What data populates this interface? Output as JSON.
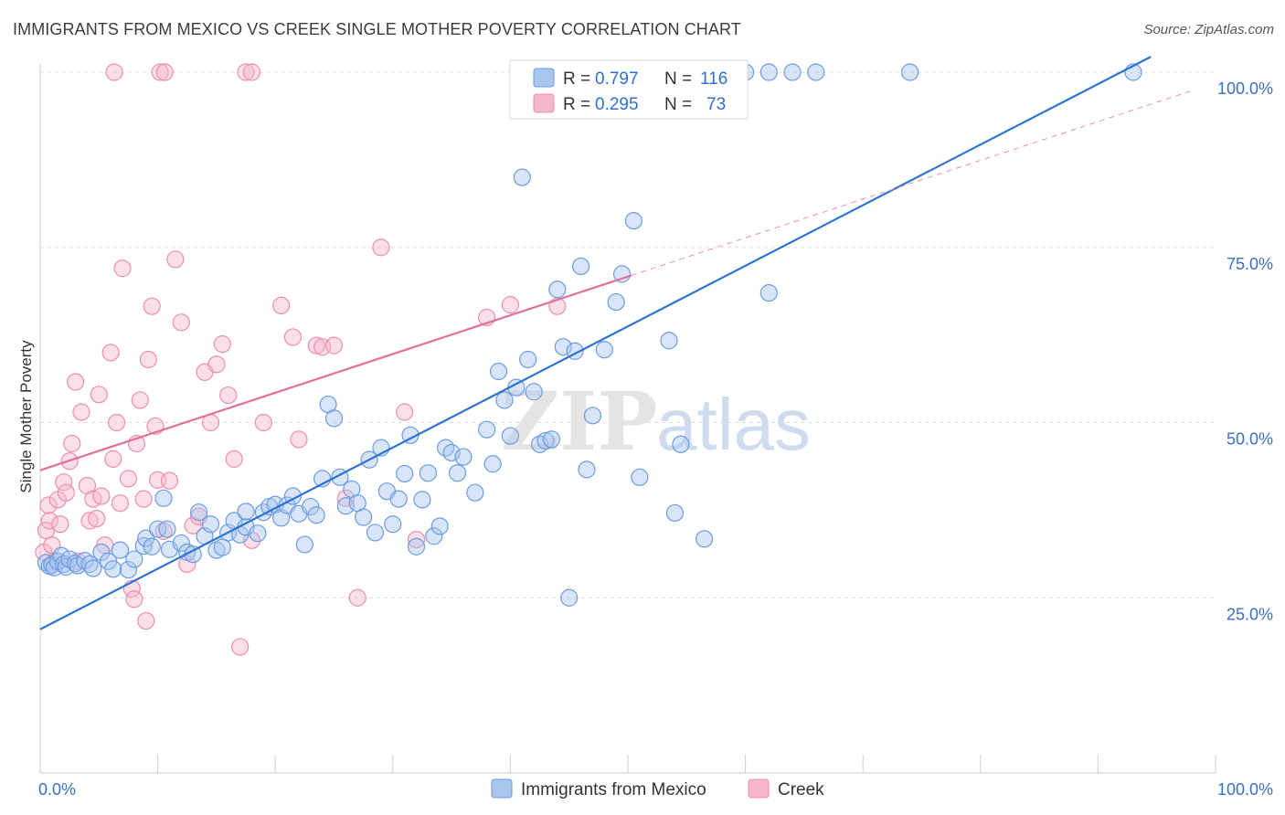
{
  "header": {
    "title": "IMMIGRANTS FROM MEXICO VS CREEK SINGLE MOTHER POVERTY CORRELATION CHART",
    "source": "Source: ZipAtlas.com"
  },
  "watermark": {
    "zip": "ZIP",
    "atlas": "atlas"
  },
  "colors": {
    "blue_fill": "#a9c6ef",
    "blue_stroke": "#6b9be0",
    "blue_line": "#2f74d0",
    "pink_fill": "#f5b8cb",
    "pink_stroke": "#ec8eab",
    "pink_line": "#e0709a",
    "grid": "#dcdcdc",
    "axis_label": "#3a6fc4"
  },
  "chart_data": {
    "type": "scatter",
    "xlabel": "",
    "ylabel": "Single Mother Poverty",
    "xlim": [
      0,
      100
    ],
    "ylim": [
      0,
      100
    ],
    "x_tick_labels": [
      "0.0%",
      "100.0%"
    ],
    "y_tick_labels": [
      "25.0%",
      "50.0%",
      "75.0%",
      "100.0%"
    ],
    "y_ticks": [
      25,
      50,
      75,
      100
    ],
    "grid": true,
    "legend_top": [
      {
        "r_label": "R = ",
        "r_value": "0.797",
        "n_label": "N = ",
        "n_value": "116"
      },
      {
        "r_label": "R = ",
        "r_value": "0.295",
        "n_label": "N = ",
        "n_value": "73"
      }
    ],
    "series": [
      {
        "name": "Immigrants from Mexico",
        "color": "#a9c6ef",
        "trend": {
          "x": [
            0,
            94.5
          ],
          "y": [
            20.5,
            102.2
          ]
        },
        "points": [
          [
            0.5,
            30
          ],
          [
            0.8,
            29.5
          ],
          [
            1,
            29.7
          ],
          [
            1.2,
            29.3
          ],
          [
            1.5,
            30.2
          ],
          [
            1.8,
            31
          ],
          [
            2,
            29.8
          ],
          [
            2.2,
            29.4
          ],
          [
            2.5,
            30.5
          ],
          [
            3,
            29.9
          ],
          [
            3.2,
            29.6
          ],
          [
            3.8,
            30.3
          ],
          [
            4.2,
            29.8
          ],
          [
            4.5,
            29.2
          ],
          [
            5.2,
            31.5
          ],
          [
            5.8,
            30.2
          ],
          [
            6.2,
            29.1
          ],
          [
            6.8,
            31.8
          ],
          [
            7.5,
            29
          ],
          [
            8,
            30.5
          ],
          [
            8.8,
            32.4
          ],
          [
            9,
            33.5
          ],
          [
            9.5,
            32.3
          ],
          [
            10,
            34.8
          ],
          [
            10.5,
            39.2
          ],
          [
            10.8,
            34.8
          ],
          [
            11,
            31.9
          ],
          [
            12,
            32.8
          ],
          [
            12.5,
            31.5
          ],
          [
            13,
            31.2
          ],
          [
            13.5,
            37.2
          ],
          [
            14,
            33.8
          ],
          [
            14.5,
            35.5
          ],
          [
            15,
            31.8
          ],
          [
            15.5,
            32.2
          ],
          [
            16,
            34.3
          ],
          [
            16.5,
            36
          ],
          [
            17,
            34
          ],
          [
            17.5,
            35.1
          ],
          [
            17.5,
            37.3
          ],
          [
            18.5,
            34.2
          ],
          [
            19,
            37.2
          ],
          [
            19.5,
            38
          ],
          [
            20,
            38.3
          ],
          [
            20.5,
            36.4
          ],
          [
            21,
            38.2
          ],
          [
            21.5,
            39.5
          ],
          [
            22,
            37
          ],
          [
            22.5,
            32.6
          ],
          [
            23,
            38
          ],
          [
            23.5,
            36.8
          ],
          [
            24,
            42
          ],
          [
            24.5,
            52.6
          ],
          [
            25,
            50.6
          ],
          [
            25.5,
            42.2
          ],
          [
            26,
            38.1
          ],
          [
            26.5,
            40.5
          ],
          [
            27,
            38.5
          ],
          [
            27.5,
            36.5
          ],
          [
            28,
            44.7
          ],
          [
            28.5,
            34.3
          ],
          [
            29,
            46.4
          ],
          [
            29.5,
            40.2
          ],
          [
            30,
            35.5
          ],
          [
            30.5,
            39.1
          ],
          [
            31,
            42.7
          ],
          [
            31.5,
            48.2
          ],
          [
            32,
            32.3
          ],
          [
            32.5,
            39
          ],
          [
            33,
            42.8
          ],
          [
            33.5,
            33.8
          ],
          [
            34,
            35.2
          ],
          [
            34.5,
            46.4
          ],
          [
            35,
            45.7
          ],
          [
            35.5,
            42.8
          ],
          [
            36,
            45.1
          ],
          [
            37,
            40
          ],
          [
            38,
            49
          ],
          [
            38.5,
            44.1
          ],
          [
            39,
            57.3
          ],
          [
            39.5,
            53.2
          ],
          [
            40,
            48.1
          ],
          [
            40.5,
            55
          ],
          [
            41,
            85
          ],
          [
            41.5,
            59
          ],
          [
            42,
            54.4
          ],
          [
            42.5,
            46.9
          ],
          [
            43,
            47.4
          ],
          [
            43.5,
            47.6
          ],
          [
            44,
            69
          ],
          [
            44.5,
            60.8
          ],
          [
            45,
            25
          ],
          [
            45.5,
            60.2
          ],
          [
            46,
            72.3
          ],
          [
            46.5,
            43.3
          ],
          [
            47,
            51
          ],
          [
            48,
            60.4
          ],
          [
            49,
            67.2
          ],
          [
            49.5,
            71.2
          ],
          [
            50.5,
            78.8
          ],
          [
            51,
            42.2
          ],
          [
            53.5,
            61.7
          ],
          [
            54,
            37.1
          ],
          [
            54.5,
            46.9
          ],
          [
            56.5,
            33.4
          ],
          [
            62,
            68.5
          ],
          [
            54,
            100
          ],
          [
            55,
            100
          ],
          [
            60,
            100
          ],
          [
            62,
            100
          ],
          [
            64,
            100
          ],
          [
            66,
            100
          ],
          [
            74,
            100
          ],
          [
            93,
            100
          ]
        ]
      },
      {
        "name": "Creek",
        "color": "#f5b8cb",
        "trend": {
          "x": [
            0,
            50.3
          ],
          "y": [
            43.2,
            71.0
          ]
        },
        "points": [
          [
            0.3,
            31.5
          ],
          [
            0.5,
            34.6
          ],
          [
            0.7,
            38.2
          ],
          [
            0.8,
            36
          ],
          [
            1,
            32.5
          ],
          [
            1.2,
            30.1
          ],
          [
            1.5,
            39
          ],
          [
            1.7,
            35.5
          ],
          [
            2,
            41.5
          ],
          [
            2.2,
            40
          ],
          [
            2.5,
            44.5
          ],
          [
            2.7,
            47
          ],
          [
            3,
            55.8
          ],
          [
            3.2,
            30.2
          ],
          [
            3.5,
            51.5
          ],
          [
            4,
            41
          ],
          [
            4.2,
            36
          ],
          [
            4.5,
            39.1
          ],
          [
            4.8,
            36.3
          ],
          [
            5,
            54
          ],
          [
            5.2,
            39.5
          ],
          [
            5.5,
            32.5
          ],
          [
            6,
            60
          ],
          [
            6.2,
            44.8
          ],
          [
            6.5,
            50
          ],
          [
            6.8,
            38.5
          ],
          [
            7,
            72
          ],
          [
            7.5,
            42
          ],
          [
            7.8,
            26.3
          ],
          [
            8,
            24.8
          ],
          [
            8.2,
            47
          ],
          [
            8.5,
            53.2
          ],
          [
            8.8,
            39.1
          ],
          [
            9,
            21.7
          ],
          [
            9.2,
            59
          ],
          [
            9.5,
            66.6
          ],
          [
            9.8,
            49.5
          ],
          [
            10,
            41.8
          ],
          [
            10.5,
            34.5
          ],
          [
            11,
            41.7
          ],
          [
            11.5,
            73.3
          ],
          [
            12,
            64.3
          ],
          [
            12.5,
            29.8
          ],
          [
            13,
            35.3
          ],
          [
            13.5,
            36.6
          ],
          [
            14,
            57.2
          ],
          [
            14.5,
            50
          ],
          [
            15,
            58.3
          ],
          [
            15.5,
            61.2
          ],
          [
            16,
            53.9
          ],
          [
            16.5,
            44.8
          ],
          [
            17,
            18
          ],
          [
            18,
            33.2
          ],
          [
            19,
            50
          ],
          [
            20.5,
            66.7
          ],
          [
            21.5,
            62.2
          ],
          [
            22,
            47.6
          ],
          [
            23.5,
            61
          ],
          [
            24,
            60.8
          ],
          [
            25,
            61
          ],
          [
            26,
            39.2
          ],
          [
            27,
            25
          ],
          [
            29,
            75
          ],
          [
            31,
            51.5
          ],
          [
            32,
            33.3
          ],
          [
            38,
            65
          ],
          [
            40,
            66.8
          ],
          [
            44,
            66.6
          ],
          [
            6.3,
            100
          ],
          [
            10.2,
            100
          ],
          [
            10.6,
            100
          ],
          [
            17.5,
            100
          ],
          [
            18,
            100
          ]
        ]
      }
    ]
  }
}
